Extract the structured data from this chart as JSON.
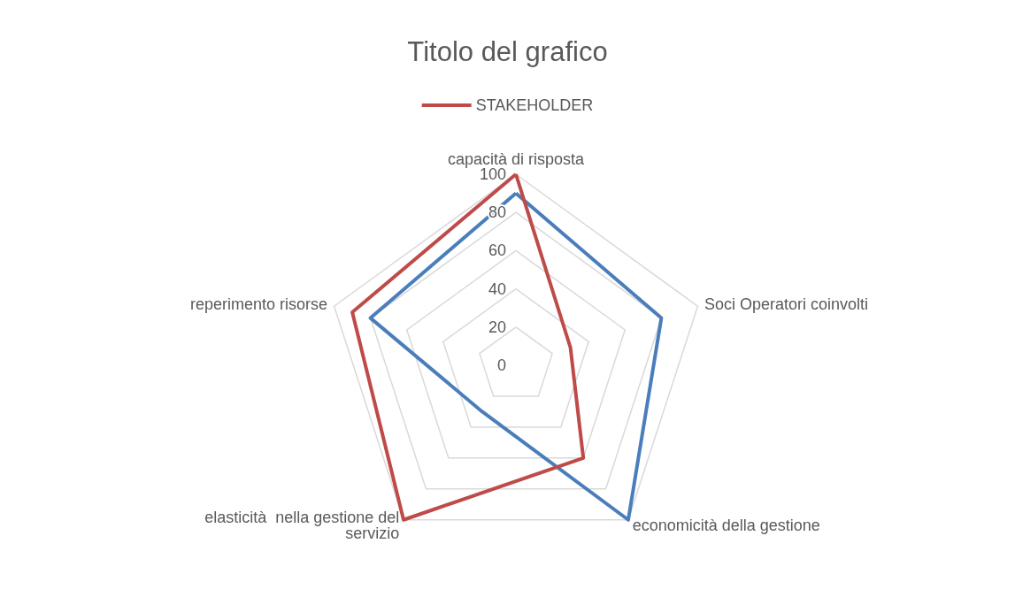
{
  "chart_data": {
    "type": "radar",
    "title": "Titolo del grafico",
    "categories": [
      "capacità di risposta",
      "Soci Operatori coinvolti",
      "economicità della gestione",
      "elasticità  nella gestione del servizio",
      "reperimento risorse"
    ],
    "series": [
      {
        "color": "#4a7ebb",
        "values": [
          90,
          80,
          100,
          30,
          80
        ]
      },
      {
        "name": "STAKEHOLDER",
        "color": "#be4b48",
        "values": [
          100,
          30,
          60,
          100,
          90
        ]
      }
    ],
    "ylim": [
      0,
      100
    ],
    "yticks": [
      0,
      20,
      40,
      60,
      80,
      100
    ],
    "legend": "top",
    "marker": "none",
    "grid": true
  }
}
